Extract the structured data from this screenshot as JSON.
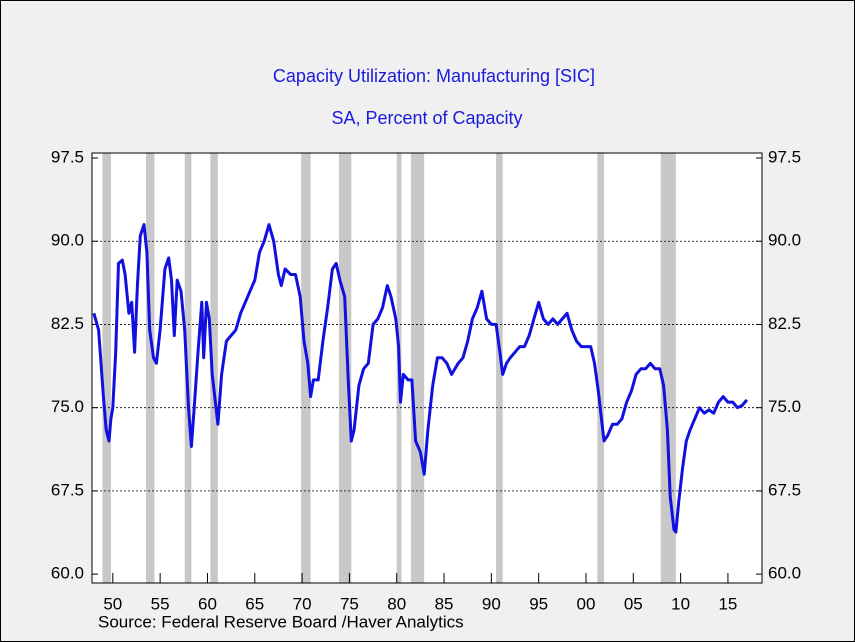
{
  "chart_data": {
    "type": "line",
    "title": "Capacity Utilization: Manufacturing [SIC]",
    "subtitle": "SA, Percent of Capacity",
    "source": "Source:  Federal Reserve Board /Haver Analytics",
    "xlim": [
      1947.8,
      2018.6
    ],
    "ylim": [
      59.2,
      97.95
    ],
    "xticks": [
      {
        "value": 1950,
        "label": "50"
      },
      {
        "value": 1955,
        "label": "55"
      },
      {
        "value": 1960,
        "label": "60"
      },
      {
        "value": 1965,
        "label": "65"
      },
      {
        "value": 1970,
        "label": "70"
      },
      {
        "value": 1975,
        "label": "75"
      },
      {
        "value": 1980,
        "label": "80"
      },
      {
        "value": 1985,
        "label": "85"
      },
      {
        "value": 1990,
        "label": "90"
      },
      {
        "value": 1995,
        "label": "95"
      },
      {
        "value": 2000,
        "label": "00"
      },
      {
        "value": 2005,
        "label": "05"
      },
      {
        "value": 2010,
        "label": "10"
      },
      {
        "value": 2015,
        "label": "15"
      }
    ],
    "yticks": [
      {
        "value": 60,
        "label": "60.0"
      },
      67.5,
      {
        "value": 75,
        "label": "75.0"
      },
      82.5,
      {
        "value": 90,
        "label": "90.0"
      },
      97.5
    ],
    "grid": true,
    "recession_color": "#c8c8c8",
    "recessions": [
      [
        1948.9,
        1949.8
      ],
      [
        1953.5,
        1954.4
      ],
      [
        1957.6,
        1958.3
      ],
      [
        1960.3,
        1961.1
      ],
      [
        1969.9,
        1970.9
      ],
      [
        1973.9,
        1975.2
      ],
      [
        1980.0,
        1980.5
      ],
      [
        1981.5,
        1982.9
      ],
      [
        1990.5,
        1991.2
      ],
      [
        2001.2,
        2001.9
      ],
      [
        2007.9,
        2009.5
      ]
    ],
    "series": [
      {
        "color": "#1010e0",
        "x": [
          1948.0,
          1948.5,
          1949.0,
          1949.3,
          1949.6,
          1949.8,
          1950.0,
          1950.3,
          1950.6,
          1951.0,
          1951.3,
          1951.7,
          1952.0,
          1952.3,
          1952.6,
          1952.9,
          1953.3,
          1953.6,
          1953.9,
          1954.3,
          1954.6,
          1955.0,
          1955.5,
          1955.9,
          1956.2,
          1956.5,
          1956.8,
          1957.2,
          1957.6,
          1958.0,
          1958.3,
          1958.6,
          1959.0,
          1959.4,
          1959.6,
          1959.9,
          1960.2,
          1960.5,
          1960.9,
          1961.1,
          1961.5,
          1962.0,
          1962.5,
          1963.0,
          1963.5,
          1964.0,
          1964.5,
          1965.0,
          1965.5,
          1966.0,
          1966.5,
          1967.0,
          1967.5,
          1967.8,
          1968.2,
          1968.8,
          1969.3,
          1969.8,
          1970.2,
          1970.6,
          1970.9,
          1971.2,
          1971.7,
          1972.2,
          1972.7,
          1973.2,
          1973.6,
          1974.0,
          1974.5,
          1974.9,
          1975.2,
          1975.5,
          1976.0,
          1976.5,
          1977.0,
          1977.5,
          1978.0,
          1978.5,
          1979.0,
          1979.4,
          1979.9,
          1980.2,
          1980.4,
          1980.7,
          1981.2,
          1981.6,
          1982.0,
          1982.5,
          1982.9,
          1983.3,
          1983.8,
          1984.3,
          1984.8,
          1985.3,
          1985.8,
          1986.5,
          1987.0,
          1987.5,
          1988.0,
          1988.5,
          1989.0,
          1989.5,
          1990.0,
          1990.5,
          1990.9,
          1991.2,
          1991.6,
          1992.0,
          1992.5,
          1993.0,
          1993.5,
          1994.0,
          1994.5,
          1995.0,
          1995.5,
          1996.0,
          1996.5,
          1997.0,
          1997.5,
          1998.0,
          1998.5,
          1999.0,
          1999.5,
          2000.0,
          2000.5,
          2000.9,
          2001.3,
          2001.7,
          2001.9,
          2002.3,
          2002.8,
          2003.3,
          2003.8,
          2004.3,
          2004.8,
          2005.3,
          2005.8,
          2006.3,
          2006.8,
          2007.3,
          2007.8,
          2008.2,
          2008.6,
          2008.9,
          2009.3,
          2009.5,
          2009.8,
          2010.2,
          2010.6,
          2011.0,
          2011.5,
          2012.0,
          2012.5,
          2013.0,
          2013.5,
          2014.0,
          2014.5,
          2015.0,
          2015.5,
          2016.0,
          2016.5,
          2017.0
        ],
        "values": [
          83.5,
          82,
          76,
          73,
          72,
          74,
          75,
          80,
          88,
          88.3,
          87,
          83.5,
          84.5,
          80,
          86,
          90.5,
          91.5,
          89,
          82,
          79.5,
          79,
          82,
          87.5,
          88.5,
          86.5,
          81.5,
          86.5,
          85.5,
          82,
          75,
          71.5,
          75,
          80,
          84.5,
          79.5,
          84.5,
          83,
          78,
          75,
          73.5,
          78,
          81,
          81.5,
          82,
          83.5,
          84.5,
          85.5,
          86.5,
          89,
          90,
          91.5,
          90,
          87,
          86,
          87.5,
          87,
          87,
          85,
          81,
          79,
          76,
          77.5,
          77.5,
          81,
          84,
          87.5,
          88,
          86.5,
          85,
          77,
          72,
          73,
          77,
          78.5,
          79,
          82.5,
          83,
          84,
          86,
          85,
          83,
          80.5,
          75.5,
          78,
          77.5,
          77.5,
          72,
          71,
          69,
          73,
          77,
          79.5,
          79.5,
          79,
          78,
          79,
          79.5,
          81,
          83,
          84,
          85.5,
          83,
          82.5,
          82.5,
          80,
          78,
          79,
          79.5,
          80,
          80.5,
          80.5,
          81.5,
          83,
          84.5,
          83,
          82.5,
          83,
          82.5,
          83,
          83.5,
          82,
          81,
          80.5,
          80.5,
          80.5,
          79,
          76.5,
          73.5,
          72,
          72.5,
          73.5,
          73.5,
          74,
          75.5,
          76.5,
          78,
          78.5,
          78.5,
          79,
          78.5,
          78.5,
          77,
          73,
          67,
          64,
          63.8,
          66.5,
          69.5,
          72,
          73,
          74,
          75,
          74.5,
          74.8,
          74.5,
          75.5,
          76,
          75.5,
          75.5,
          75,
          75.2,
          75.7
        ]
      }
    ]
  }
}
